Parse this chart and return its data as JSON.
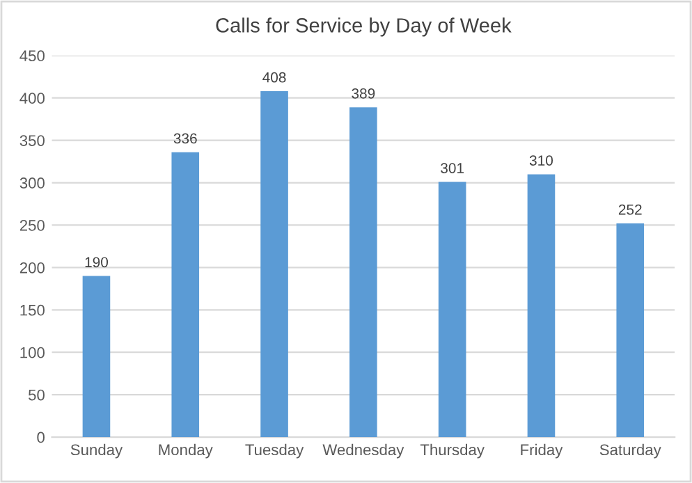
{
  "chart_data": {
    "type": "bar",
    "title": "Calls for Service by Day of Week",
    "categories": [
      "Sunday",
      "Monday",
      "Tuesday",
      "Wednesday",
      "Thursday",
      "Friday",
      "Saturday"
    ],
    "values": [
      190,
      336,
      408,
      389,
      301,
      310,
      252
    ],
    "color": "#5b9bd5",
    "ylim": [
      0,
      450
    ],
    "yticks": [
      0,
      50,
      100,
      150,
      200,
      250,
      300,
      350,
      400,
      450
    ],
    "grid": "y",
    "data_labels": true
  }
}
